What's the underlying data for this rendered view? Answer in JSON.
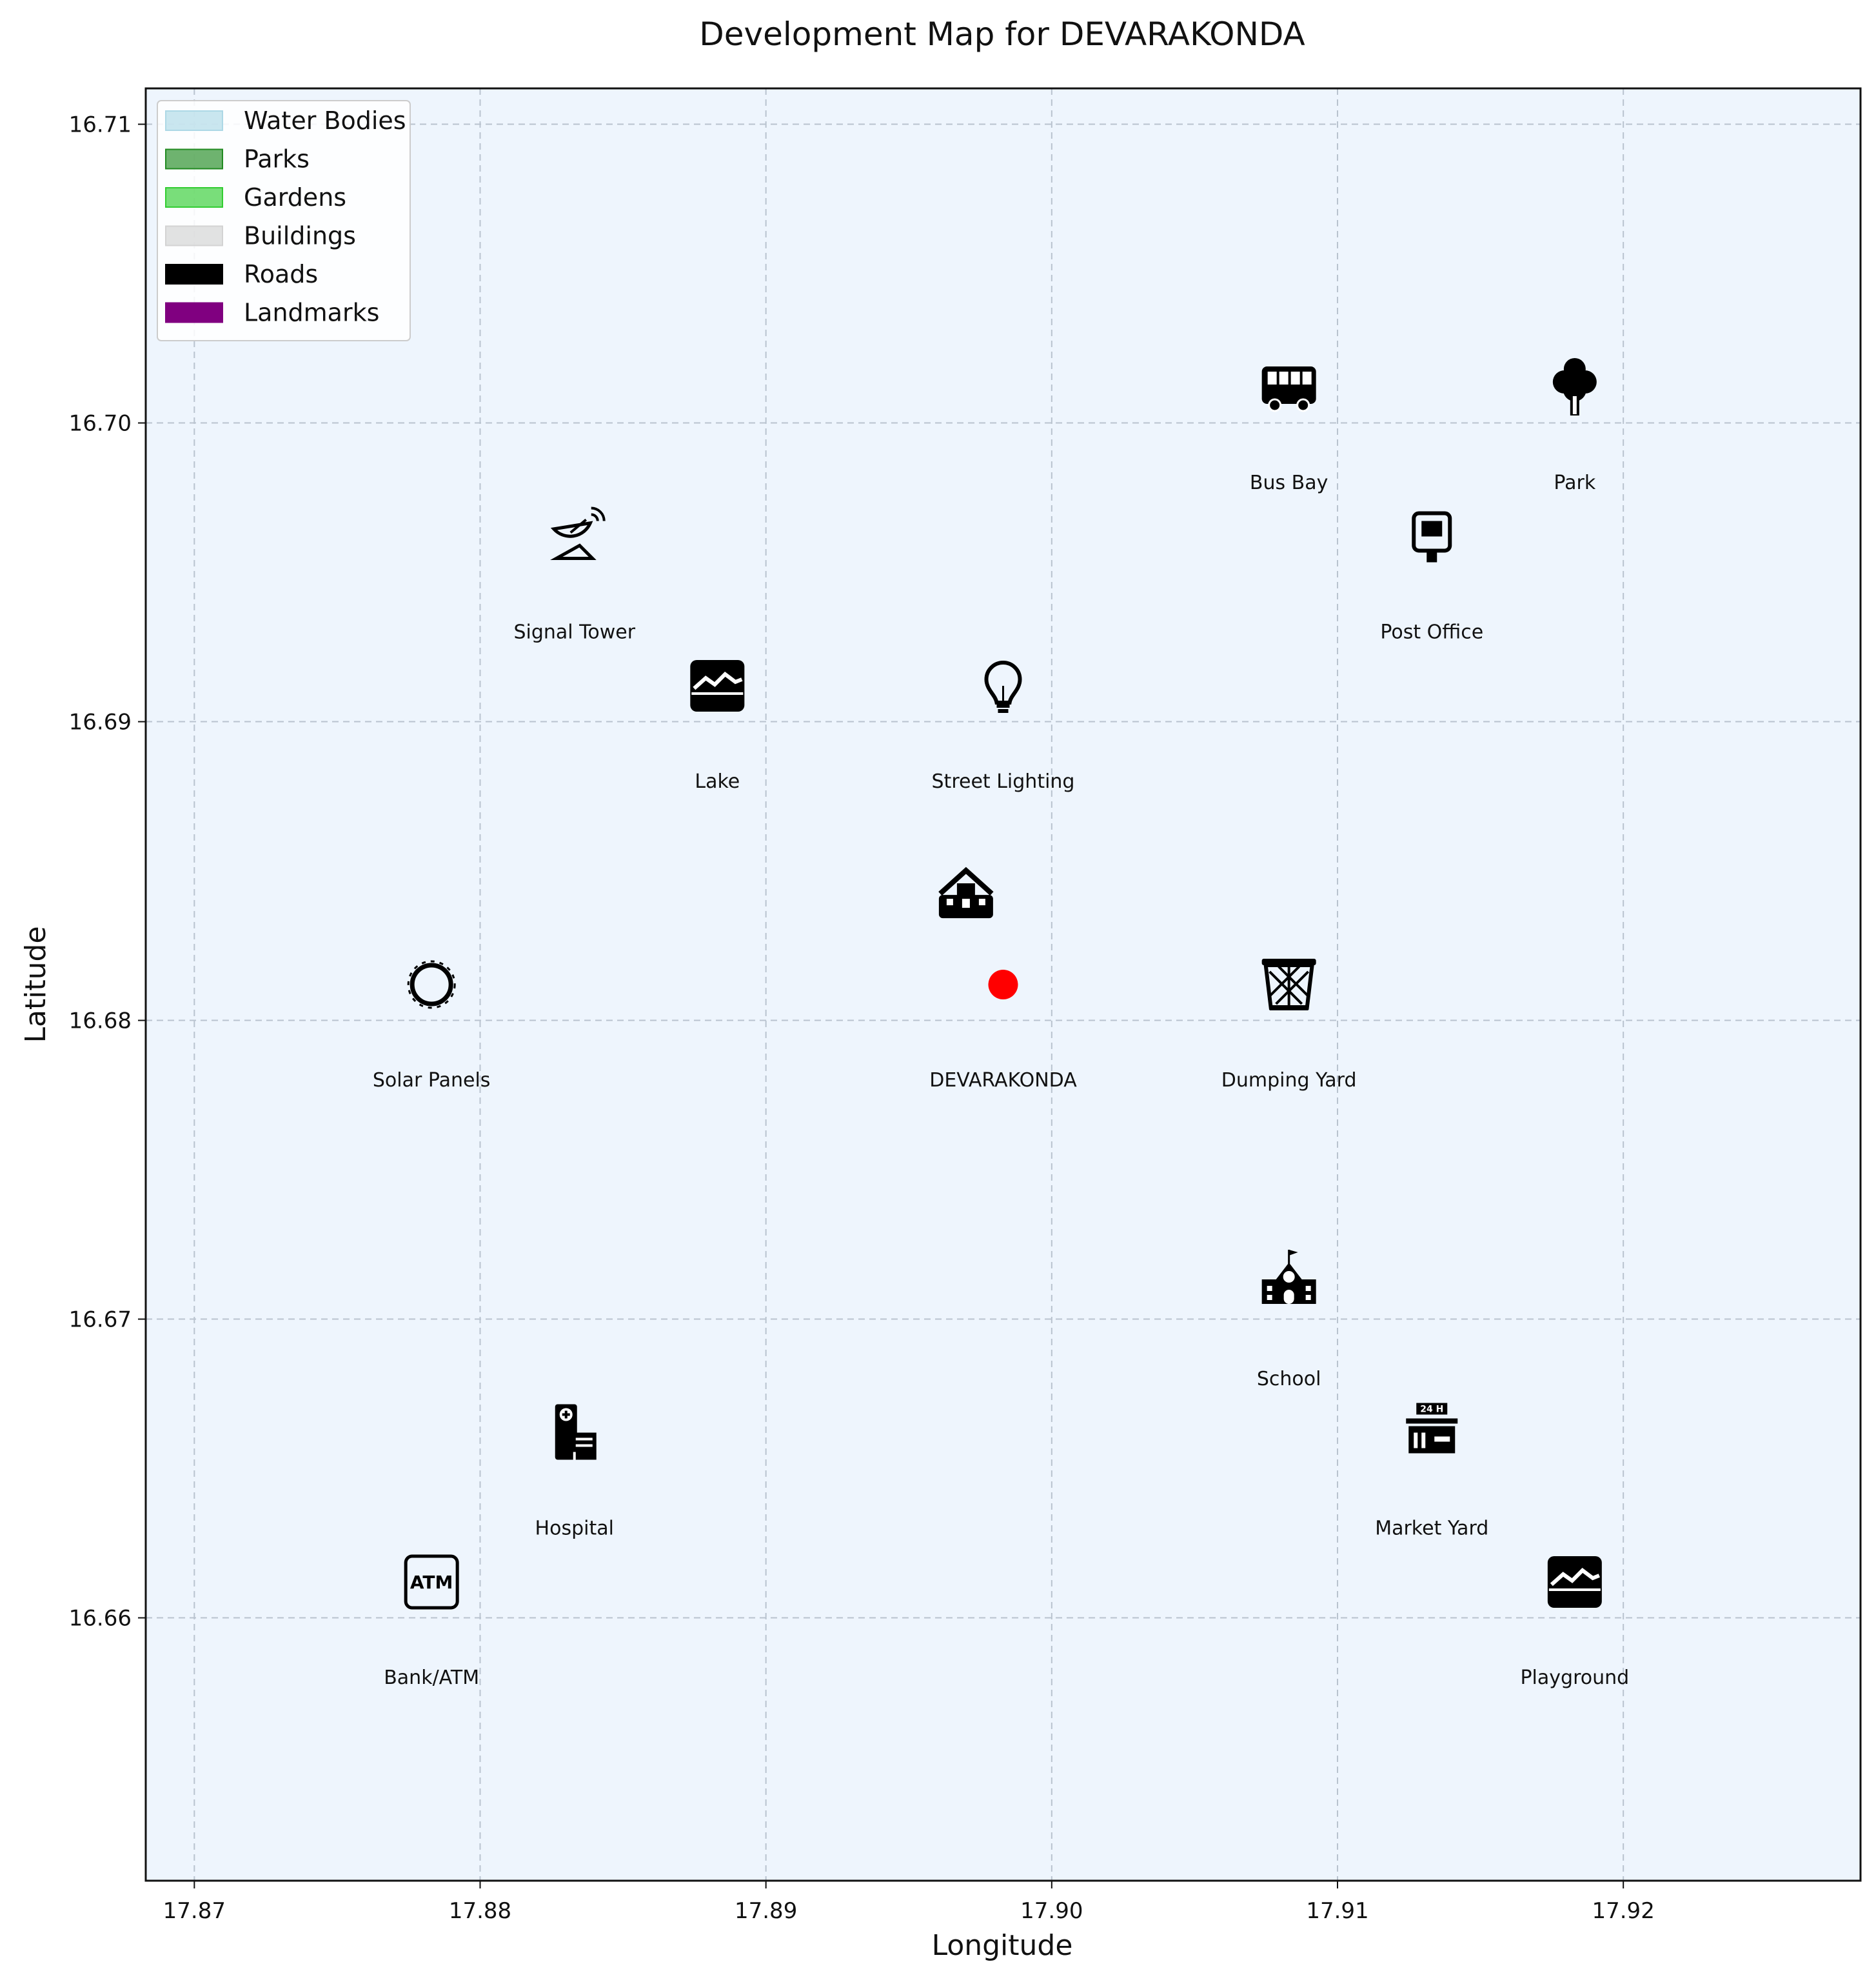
{
  "chart_data": {
    "type": "scatter",
    "title": "Development Map for DEVARAKONDA",
    "xlabel": "Longitude",
    "ylabel": "Latitude",
    "xlim": [
      17.8683,
      17.9283
    ],
    "ylim": [
      16.6512,
      16.7112
    ],
    "x_ticks": [
      "17.87",
      "17.88",
      "17.89",
      "17.90",
      "17.91",
      "17.92"
    ],
    "y_ticks": [
      "16.66",
      "16.67",
      "16.68",
      "16.69",
      "16.70",
      "16.71"
    ],
    "grid": true,
    "background": "#eef5fd",
    "legend_position": "top-left",
    "legend": [
      {
        "label": "Water Bodies",
        "color": "#add8e6"
      },
      {
        "label": "Parks",
        "color": "#228b22"
      },
      {
        "label": "Gardens",
        "color": "#32cd32"
      },
      {
        "label": "Buildings",
        "color": "#d3d3d3"
      },
      {
        "label": "Roads",
        "color": "#000000"
      },
      {
        "label": "Landmarks",
        "color": "#800080"
      }
    ],
    "center": {
      "name": "DEVARAKONDA",
      "x": 17.8983,
      "y": 16.6812,
      "color": "#ff0000"
    },
    "points": [
      {
        "name": "Bus Bay",
        "icon": "bus-icon",
        "x": 17.9083,
        "y": 16.7012
      },
      {
        "name": "Park",
        "icon": "tree-icon",
        "x": 17.9183,
        "y": 16.7012
      },
      {
        "name": "Signal Tower",
        "icon": "satellite-dish-icon",
        "x": 17.8833,
        "y": 16.6962
      },
      {
        "name": "Post Office",
        "icon": "mailbox-icon",
        "x": 17.9133,
        "y": 16.6962
      },
      {
        "name": "Lake",
        "icon": "landscape-icon",
        "x": 17.8883,
        "y": 16.6912
      },
      {
        "name": "Street Lighting",
        "icon": "lightbulb-icon",
        "x": 17.8983,
        "y": 16.6912
      },
      {
        "name": "",
        "icon": "house-icon",
        "x": 17.897,
        "y": 16.6842
      },
      {
        "name": "Solar Panels",
        "icon": "sun-icon",
        "x": 17.8783,
        "y": 16.6812
      },
      {
        "name": "Dumping Yard",
        "icon": "trash-basket-icon",
        "x": 17.9083,
        "y": 16.6812
      },
      {
        "name": "School",
        "icon": "school-icon",
        "x": 17.9083,
        "y": 16.6712
      },
      {
        "name": "Hospital",
        "icon": "hospital-icon",
        "x": 17.8833,
        "y": 16.6662
      },
      {
        "name": "Market Yard",
        "icon": "store-icon",
        "x": 17.9133,
        "y": 16.6662
      },
      {
        "name": "Bank/ATM",
        "icon": "atm-icon",
        "x": 17.8783,
        "y": 16.6612
      },
      {
        "name": "Playground",
        "icon": "landscape-icon",
        "x": 17.9183,
        "y": 16.6612
      }
    ]
  }
}
